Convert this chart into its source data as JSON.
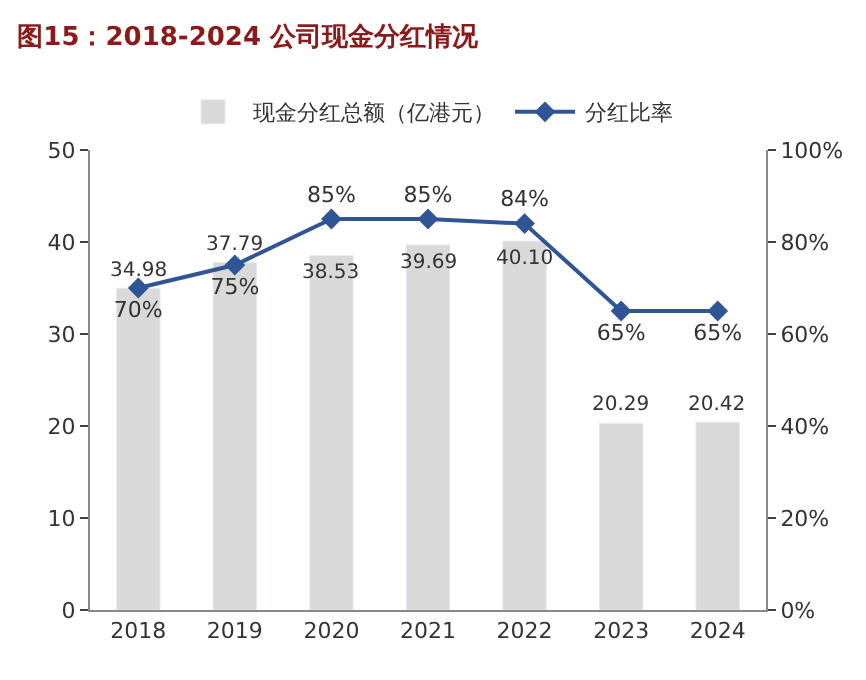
{
  "chart_data": {
    "type": "bar",
    "title": "图15：2018-2024 公司现金分红情况",
    "categories": [
      "2018",
      "2019",
      "2020",
      "2021",
      "2022",
      "2023",
      "2024"
    ],
    "series": [
      {
        "name": "现金分红总额（亿港元）",
        "color": "#d9d9d9",
        "values": [
          34.98,
          37.79,
          38.53,
          39.69,
          40.1,
          20.29,
          20.42
        ],
        "value_labels": [
          "34.98",
          "37.79",
          "38.53",
          "39.69",
          "40.10",
          "20.29",
          "20.42"
        ]
      },
      {
        "name": "分红比率",
        "type": "line",
        "axis": "y2",
        "color": "#2f5597",
        "values": [
          70,
          75,
          85,
          85,
          84,
          65,
          65
        ],
        "value_labels": [
          "70%",
          "75%",
          "85%",
          "85%",
          "84%",
          "65%",
          "65%"
        ]
      }
    ],
    "ylim": [
      0,
      50
    ],
    "yticks": [
      0,
      10,
      20,
      30,
      40,
      50
    ],
    "y2lim": [
      0,
      100
    ],
    "y2ticks": [
      {
        "value": 0,
        "label": "0%"
      },
      {
        "value": 20,
        "label": "20%"
      },
      {
        "value": 40,
        "label": "40%"
      },
      {
        "value": 60,
        "label": "60%"
      },
      {
        "value": 80,
        "label": "80%"
      },
      {
        "value": 100,
        "label": "100%"
      }
    ],
    "legend": "top",
    "marker": "diamond",
    "line_style": "solid"
  }
}
